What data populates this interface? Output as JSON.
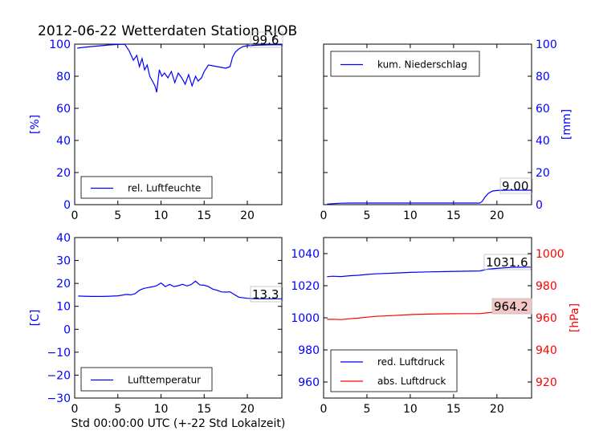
{
  "figure": {
    "title": "2012-06-22 Wetterdaten Station RJOB",
    "xlabel": "Std 00:00:00 UTC (+-22 Std Lokalzeit)"
  },
  "colors": {
    "blue": "#0000ff",
    "red": "#ff0000",
    "frame": "#000000"
  },
  "chart_data": [
    {
      "type": "line",
      "panel": "top-left",
      "ylabel": "[%]",
      "ylim": [
        0,
        100
      ],
      "xlim": [
        0,
        24
      ],
      "xticks": [
        "0",
        "5",
        "10",
        "15",
        "20"
      ],
      "yticks": [
        "0",
        "20",
        "40",
        "60",
        "80",
        "100"
      ],
      "yaxis_side": "left",
      "legend_position": "lower-center",
      "annotation": "99.6",
      "series": [
        {
          "name": "rel. Luftfeuchte",
          "color": "#0000ff",
          "x": [
            0.3,
            1,
            2,
            3,
            4,
            5,
            5.8,
            6.3,
            6.8,
            7.2,
            7.5,
            7.8,
            8.1,
            8.4,
            8.7,
            9,
            9.3,
            9.5,
            9.8,
            10.1,
            10.4,
            10.8,
            11.2,
            11.6,
            12,
            12.4,
            12.8,
            13.2,
            13.6,
            14,
            14.3,
            14.7,
            15,
            15.5,
            16,
            16.5,
            17,
            17.5,
            18,
            18.3,
            18.6,
            19,
            19.5,
            20,
            21,
            22,
            23,
            24
          ],
          "y": [
            97.5,
            98,
            98.5,
            99,
            99.5,
            99.8,
            99.9,
            96,
            90,
            93,
            86,
            91,
            84,
            87,
            80,
            77,
            74,
            70,
            84,
            80,
            82,
            79,
            83,
            76,
            82,
            79,
            75,
            81,
            74,
            80,
            77,
            79,
            83,
            87,
            86.5,
            86,
            85.5,
            85,
            86,
            92,
            95,
            97,
            98.5,
            99,
            99.3,
            99.5,
            99.6,
            99.6
          ]
        }
      ]
    },
    {
      "type": "line",
      "panel": "top-right",
      "ylabel": "[mm]",
      "ylim": [
        0,
        100
      ],
      "xlim": [
        0,
        24
      ],
      "xticks": [
        "0",
        "5",
        "10",
        "15",
        "20"
      ],
      "yticks": [
        "0",
        "20",
        "40",
        "60",
        "80",
        "100"
      ],
      "yaxis_side": "right",
      "legend_position": "upper-left",
      "annotation": "9.00",
      "series": [
        {
          "name": "kum. Niederschlag",
          "color": "#0000ff",
          "x": [
            0.4,
            1,
            2,
            3,
            5,
            8,
            12,
            16,
            18,
            18.3,
            18.6,
            19,
            19.5,
            20,
            21,
            22,
            24
          ],
          "y": [
            0.3,
            0.6,
            0.9,
            1.0,
            1.0,
            1.0,
            1.0,
            1.0,
            1.0,
            2.0,
            4.5,
            7.0,
            8.5,
            8.8,
            9.0,
            9.0,
            9.0
          ]
        }
      ]
    },
    {
      "type": "line",
      "panel": "bottom-left",
      "ylabel": "[C]",
      "ylim": [
        -30,
        40
      ],
      "xlim": [
        0,
        24
      ],
      "xticks": [
        "0",
        "5",
        "10",
        "15",
        "20"
      ],
      "yticks": [
        "−30",
        "−20",
        "−10",
        "0",
        "10",
        "20",
        "30",
        "40"
      ],
      "yaxis_side": "left",
      "legend_position": "lower-center",
      "annotation": "13.3",
      "series": [
        {
          "name": "Lufttemperatur",
          "color": "#0000ff",
          "x": [
            0.4,
            1,
            2,
            3,
            4,
            5,
            6,
            6.5,
            7,
            7.5,
            8,
            8.5,
            9,
            9.5,
            10,
            10.5,
            11,
            11.5,
            12,
            12.5,
            13,
            13.5,
            14,
            14.5,
            15,
            15.5,
            16,
            16.5,
            17,
            17.5,
            18,
            19,
            20,
            21,
            22,
            24
          ],
          "y": [
            14.5,
            14.4,
            14.3,
            14.3,
            14.4,
            14.6,
            15.2,
            15.0,
            15.5,
            17.0,
            17.8,
            18.2,
            18.5,
            19.0,
            20.2,
            18.6,
            19.6,
            18.6,
            19.0,
            19.6,
            18.9,
            19.5,
            21.0,
            19.3,
            19.2,
            18.6,
            17.5,
            17.0,
            16.3,
            16.2,
            16.3,
            14.0,
            13.5,
            13.3,
            13.3,
            13.3
          ]
        }
      ]
    },
    {
      "type": "line",
      "panel": "bottom-right",
      "ylim": [
        950,
        1050
      ],
      "xlim": [
        0,
        24
      ],
      "xticks": [
        "0",
        "5",
        "10",
        "15",
        "20"
      ],
      "yticks": [
        "960",
        "980",
        "1000",
        "1020",
        "1040"
      ],
      "yaxis_side": "left",
      "y2label": "[hPa]",
      "y2lim": [
        910,
        1010
      ],
      "y2ticks": [
        "920",
        "940",
        "960",
        "980",
        "1000"
      ],
      "legend_position": "lower-left",
      "annotations": [
        "1031.6",
        "964.2"
      ],
      "series": [
        {
          "name": "red. Luftdruck",
          "color": "#0000ff",
          "axis": "left",
          "x": [
            0.4,
            1,
            2,
            3,
            4,
            5,
            6,
            8,
            10,
            12,
            14,
            16,
            18,
            19,
            20,
            21,
            22,
            24
          ],
          "y": [
            1025.6,
            1025.9,
            1025.7,
            1026.2,
            1026.5,
            1027.0,
            1027.4,
            1027.8,
            1028.3,
            1028.6,
            1028.8,
            1029.0,
            1029.2,
            1030.3,
            1030.8,
            1031.2,
            1031.5,
            1031.6
          ]
        },
        {
          "name": "abs. Luftdruck",
          "color": "#ff0000",
          "axis": "right",
          "x": [
            0.4,
            1,
            2,
            3,
            4,
            5,
            6,
            8,
            10,
            12,
            14,
            16,
            18,
            19,
            20,
            21,
            22,
            24
          ],
          "y": [
            959.0,
            959.1,
            958.9,
            959.4,
            959.8,
            960.4,
            960.9,
            961.4,
            962.0,
            962.3,
            962.5,
            962.6,
            962.6,
            963.2,
            963.6,
            963.9,
            964.1,
            964.2
          ]
        }
      ]
    }
  ]
}
